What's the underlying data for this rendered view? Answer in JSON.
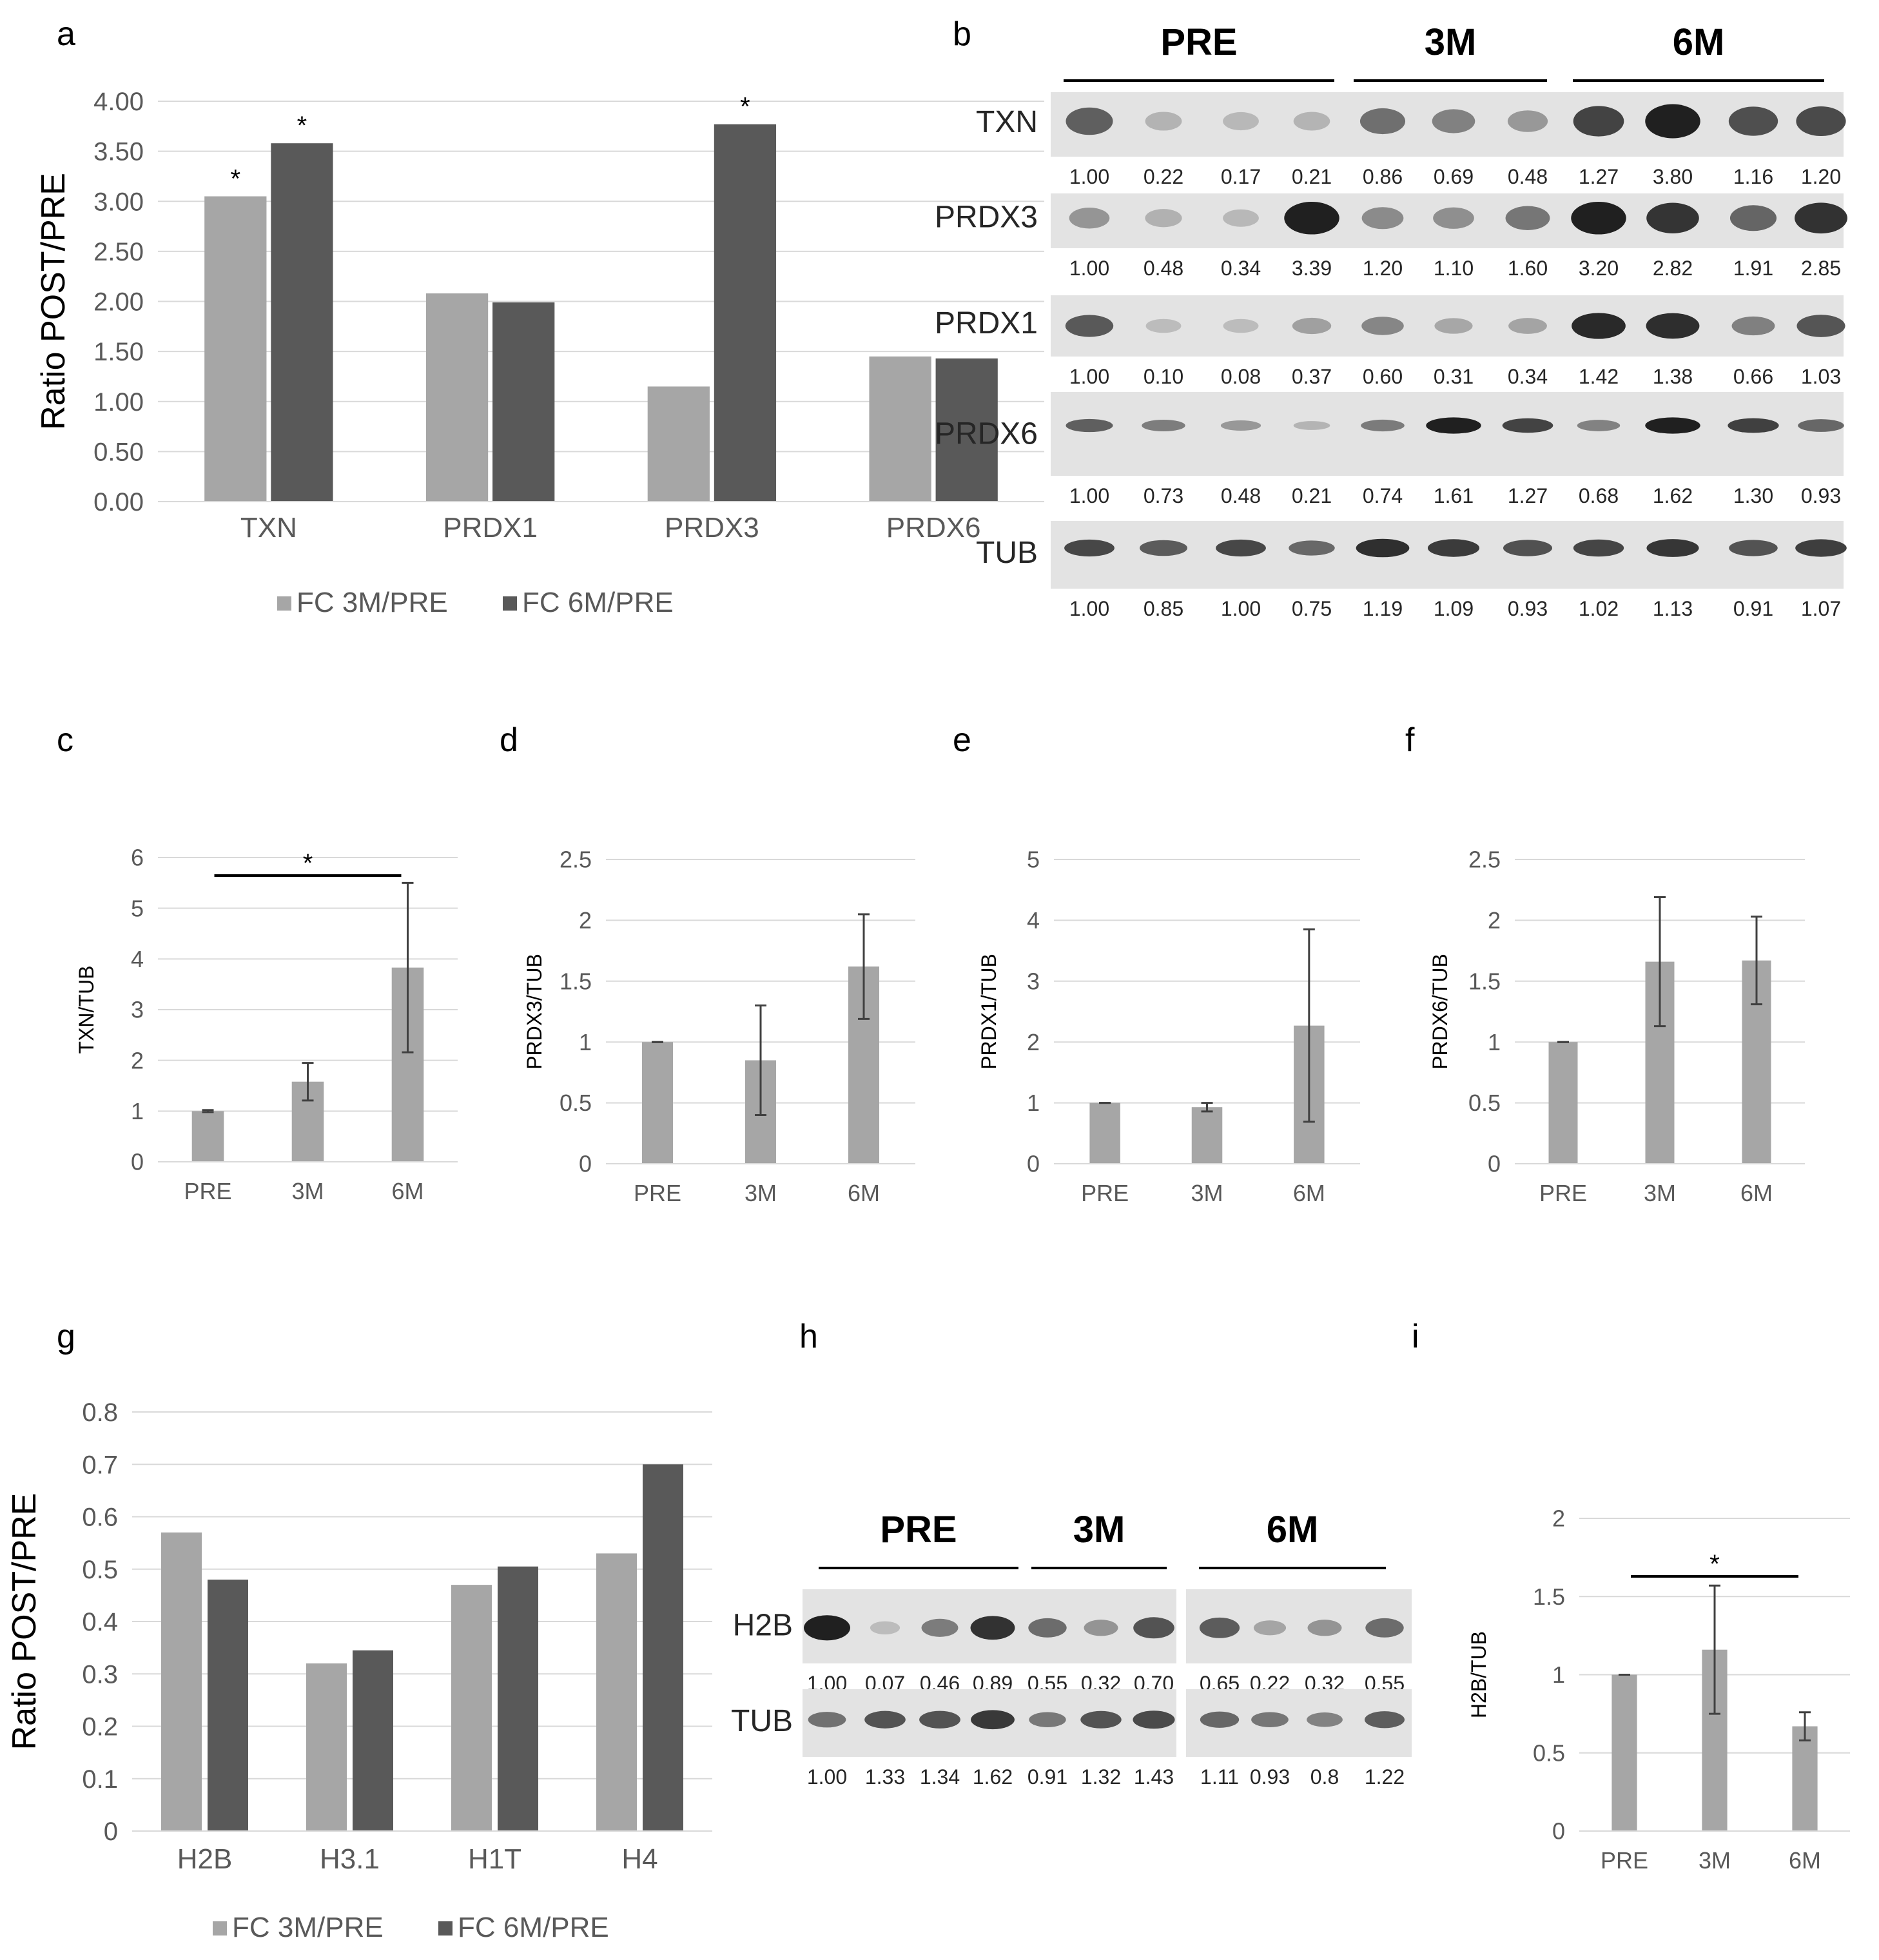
{
  "colors": {
    "fc3m": "#a6a6a6",
    "fc6m": "#595959",
    "single": "#a6a6a6",
    "grid": "#d9d9d9",
    "axis_text": "#595959",
    "error_bar": "#404040"
  },
  "chart_data": [
    {
      "id": "a",
      "panel": "a",
      "type": "bar",
      "categories": [
        "TXN",
        "PRDX1",
        "PRDX3",
        "PRDX6"
      ],
      "series": [
        {
          "name": "FC 3M/PRE",
          "values": [
            3.05,
            2.08,
            1.15,
            1.45
          ]
        },
        {
          "name": "FC 6M/PRE",
          "values": [
            3.58,
            1.99,
            3.77,
            1.43
          ]
        }
      ],
      "significance": [
        {
          "category": 0,
          "series": 0,
          "label": "*"
        },
        {
          "category": 0,
          "series": 1,
          "label": "*"
        },
        {
          "category": 2,
          "series": 1,
          "label": "*"
        }
      ],
      "yticks": [
        "0.00",
        "0.50",
        "1.00",
        "1.50",
        "2.00",
        "2.50",
        "3.00",
        "3.50",
        "4.00"
      ],
      "ylim": [
        0,
        4
      ],
      "ylabel": "Ratio POST/PRE",
      "xlabel": "",
      "legend": "bottom",
      "grid": true
    },
    {
      "id": "c",
      "panel": "c",
      "type": "bar",
      "categories": [
        "PRE",
        "3M",
        "6M"
      ],
      "values": [
        1.0,
        1.58,
        3.83
      ],
      "errors": [
        0.02,
        0.37,
        1.67
      ],
      "yticks": [
        "0",
        "1",
        "2",
        "3",
        "4",
        "5",
        "6"
      ],
      "ylim": [
        0,
        6
      ],
      "ylabel": "TXN/TUB",
      "significance": [
        {
          "from": 0,
          "to": 2,
          "label": "*"
        }
      ],
      "grid": true
    },
    {
      "id": "d",
      "panel": "d",
      "type": "bar",
      "categories": [
        "PRE",
        "3M",
        "6M"
      ],
      "values": [
        1.0,
        0.85,
        1.62
      ],
      "errors": [
        0.0,
        0.45,
        0.43
      ],
      "yticks": [
        "0",
        "0.5",
        "1",
        "1.5",
        "2",
        "2.5"
      ],
      "ylim": [
        0,
        2.5
      ],
      "ylabel": "PRDX3/TUB",
      "grid": true
    },
    {
      "id": "e",
      "panel": "e",
      "type": "bar",
      "categories": [
        "PRE",
        "3M",
        "6M"
      ],
      "values": [
        1.0,
        0.93,
        2.27
      ],
      "errors": [
        0.0,
        0.07,
        1.58
      ],
      "yticks": [
        "0",
        "1",
        "2",
        "3",
        "4",
        "5"
      ],
      "ylim": [
        0,
        5
      ],
      "ylabel": "PRDX1/TUB",
      "grid": true
    },
    {
      "id": "f",
      "panel": "f",
      "type": "bar",
      "categories": [
        "PRE",
        "3M",
        "6M"
      ],
      "values": [
        1.0,
        1.66,
        1.67
      ],
      "errors": [
        0.0,
        0.53,
        0.36
      ],
      "yticks": [
        "0",
        "0.5",
        "1",
        "1.5",
        "2",
        "2.5"
      ],
      "ylim": [
        0,
        2.5
      ],
      "ylabel": "PRDX6/TUB",
      "grid": true
    },
    {
      "id": "g",
      "panel": "g",
      "type": "bar",
      "categories": [
        "H2B",
        "H3.1",
        "H1T",
        "H4"
      ],
      "series": [
        {
          "name": "FC 3M/PRE",
          "values": [
            0.57,
            0.32,
            0.47,
            0.53
          ]
        },
        {
          "name": "FC 6M/PRE",
          "values": [
            0.48,
            0.345,
            0.505,
            0.7
          ]
        }
      ],
      "yticks": [
        "0",
        "0.1",
        "0.2",
        "0.3",
        "0.4",
        "0.5",
        "0.6",
        "0.7",
        "0.8"
      ],
      "ylim": [
        0,
        0.8
      ],
      "ylabel": "Ratio POST/PRE",
      "legend": "bottom",
      "grid": true
    },
    {
      "id": "i",
      "panel": "i",
      "type": "bar",
      "categories": [
        "PRE",
        "3M",
        "6M"
      ],
      "values": [
        1.0,
        1.16,
        0.67
      ],
      "errors": [
        0.0,
        0.41,
        0.09
      ],
      "yticks": [
        "0",
        "0.5",
        "1",
        "1.5",
        "2"
      ],
      "ylim": [
        0,
        2
      ],
      "ylabel": "H2B/TUB",
      "significance": [
        {
          "from": 0,
          "to": 2,
          "label": "*"
        }
      ],
      "grid": true
    }
  ],
  "blots": {
    "b": {
      "panel": "b",
      "groups": [
        "PRE",
        "3M",
        "6M"
      ],
      "rows": [
        {
          "label": "TXN",
          "values": [
            "1.00",
            "0.22",
            "0.17",
            "0.21",
            "0.86",
            "0.69",
            "0.48",
            "1.27",
            "3.80",
            "1.16",
            "1.20"
          ]
        },
        {
          "label": "PRDX3",
          "values": [
            "1.00",
            "0.48",
            "0.34",
            "3.39",
            "1.20",
            "1.10",
            "1.60",
            "3.20",
            "2.82",
            "1.91",
            "2.85"
          ]
        },
        {
          "label": "PRDX1",
          "values": [
            "1.00",
            "0.10",
            "0.08",
            "0.37",
            "0.60",
            "0.31",
            "0.34",
            "1.42",
            "1.38",
            "0.66",
            "1.03"
          ]
        },
        {
          "label": "PRDX6",
          "values": [
            "1.00",
            "0.73",
            "0.48",
            "0.21",
            "0.74",
            "1.61",
            "1.27",
            "0.68",
            "1.62",
            "1.30",
            "0.93"
          ]
        },
        {
          "label": "TUB",
          "values": [
            "1.00",
            "0.85",
            "1.00",
            "0.75",
            "1.19",
            "1.09",
            "0.93",
            "1.02",
            "1.13",
            "0.91",
            "1.07"
          ]
        }
      ]
    },
    "h": {
      "panel": "h",
      "groups": [
        "PRE",
        "3M",
        "6M"
      ],
      "rows": [
        {
          "label": "H2B",
          "values": [
            "1.00",
            "0.07",
            "0.46",
            "0.89",
            "0.55",
            "0.32",
            "0.70",
            "0.65",
            "0.22",
            "0.32",
            "0.55"
          ]
        },
        {
          "label": "TUB",
          "values": [
            "1.00",
            "1.33",
            "1.34",
            "1.62",
            "0.91",
            "1.32",
            "1.43",
            "1.11",
            "0.93",
            "0.8",
            "1.22"
          ]
        }
      ]
    }
  }
}
